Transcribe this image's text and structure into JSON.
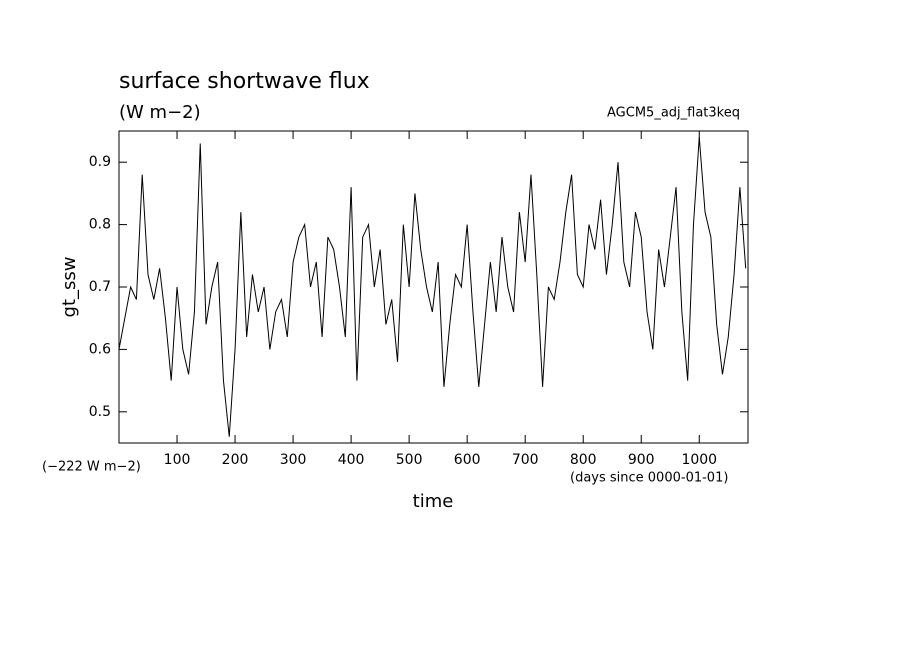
{
  "chart_data": {
    "type": "line",
    "title": "surface shortwave flux",
    "subtitle": "(W m−2)",
    "annotation": "AGCM5_adj_flat3keq",
    "y_label": "gt_ssw",
    "y_offset_note": "(−222 W m−2)",
    "x_label": "time",
    "x_unit_note": "(days since 0000-01-01)",
    "xlim": [
      0,
      1084
    ],
    "ylim": [
      0.45,
      0.95
    ],
    "xticks": [
      100,
      200,
      300,
      400,
      500,
      600,
      700,
      800,
      900,
      1000
    ],
    "yticks": [
      0.5,
      0.6,
      0.7,
      0.8,
      0.9
    ],
    "x": [
      0,
      10,
      20,
      30,
      40,
      50,
      60,
      70,
      80,
      90,
      100,
      110,
      120,
      130,
      140,
      150,
      160,
      170,
      180,
      190,
      200,
      210,
      220,
      230,
      240,
      250,
      260,
      270,
      280,
      290,
      300,
      310,
      320,
      330,
      340,
      350,
      360,
      370,
      380,
      390,
      400,
      410,
      420,
      430,
      440,
      450,
      460,
      470,
      480,
      490,
      500,
      510,
      520,
      530,
      540,
      550,
      560,
      570,
      580,
      590,
      600,
      610,
      620,
      630,
      640,
      650,
      660,
      670,
      680,
      690,
      700,
      710,
      720,
      730,
      740,
      750,
      760,
      770,
      780,
      790,
      800,
      810,
      820,
      830,
      840,
      850,
      860,
      870,
      880,
      890,
      900,
      910,
      920,
      930,
      940,
      950,
      960,
      970,
      980,
      990,
      1000,
      1010,
      1020,
      1030,
      1040,
      1050,
      1060,
      1070,
      1080
    ],
    "series": [
      {
        "color": "#000000",
        "values": [
          0.6,
          0.65,
          0.7,
          0.68,
          0.88,
          0.72,
          0.68,
          0.73,
          0.65,
          0.55,
          0.7,
          0.6,
          0.56,
          0.66,
          0.93,
          0.64,
          0.7,
          0.74,
          0.55,
          0.46,
          0.6,
          0.82,
          0.62,
          0.72,
          0.66,
          0.7,
          0.6,
          0.66,
          0.68,
          0.62,
          0.74,
          0.78,
          0.8,
          0.7,
          0.74,
          0.62,
          0.78,
          0.76,
          0.7,
          0.62,
          0.86,
          0.55,
          0.78,
          0.8,
          0.7,
          0.76,
          0.64,
          0.68,
          0.58,
          0.8,
          0.7,
          0.85,
          0.76,
          0.7,
          0.66,
          0.74,
          0.54,
          0.64,
          0.72,
          0.7,
          0.8,
          0.66,
          0.54,
          0.64,
          0.74,
          0.66,
          0.78,
          0.7,
          0.66,
          0.82,
          0.74,
          0.88,
          0.72,
          0.54,
          0.7,
          0.68,
          0.74,
          0.82,
          0.88,
          0.72,
          0.7,
          0.8,
          0.76,
          0.84,
          0.72,
          0.8,
          0.9,
          0.74,
          0.7,
          0.82,
          0.78,
          0.66,
          0.6,
          0.76,
          0.7,
          0.78,
          0.86,
          0.66,
          0.55,
          0.8,
          0.94,
          0.82,
          0.78,
          0.64,
          0.56,
          0.62,
          0.72,
          0.86,
          0.73
        ]
      }
    ]
  }
}
